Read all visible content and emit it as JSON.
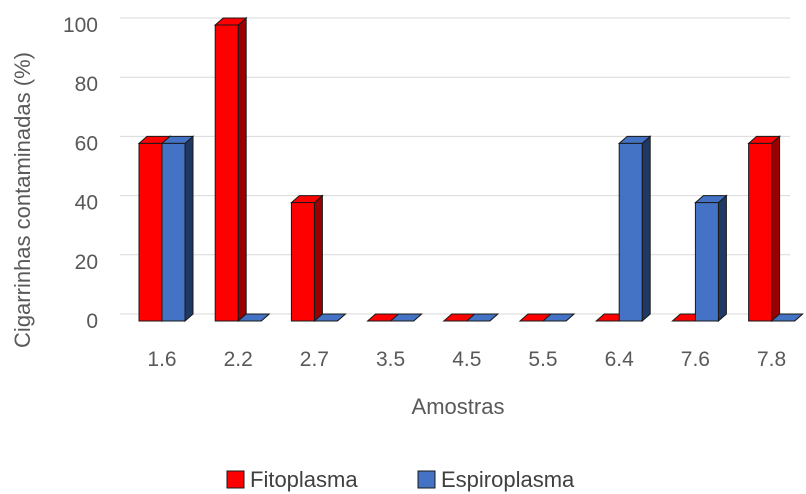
{
  "chart_data": {
    "type": "bar",
    "style": "3d-clustered-column",
    "categories": [
      "1.6",
      "2.2",
      "2.7",
      "3.5",
      "4.5",
      "5.5",
      "6.4",
      "7.6",
      "7.8"
    ],
    "series": [
      {
        "name": "Fitoplasma",
        "values": [
          60,
          100,
          40,
          0,
          0,
          0,
          0,
          0,
          60
        ],
        "color": "#ff0000",
        "side_color": "#990000"
      },
      {
        "name": "Espiroplasma",
        "values": [
          60,
          0,
          0,
          0,
          0,
          0,
          60,
          40,
          0
        ],
        "color": "#4472c4",
        "side_color": "#203864"
      }
    ],
    "xlabel": "Amostras",
    "ylabel": "Cigarrinhas contaminadas (%)",
    "ylim": [
      0,
      100
    ],
    "yticks": [
      0,
      20,
      40,
      60,
      80,
      100
    ],
    "grid": true,
    "legend_position": "bottom"
  }
}
